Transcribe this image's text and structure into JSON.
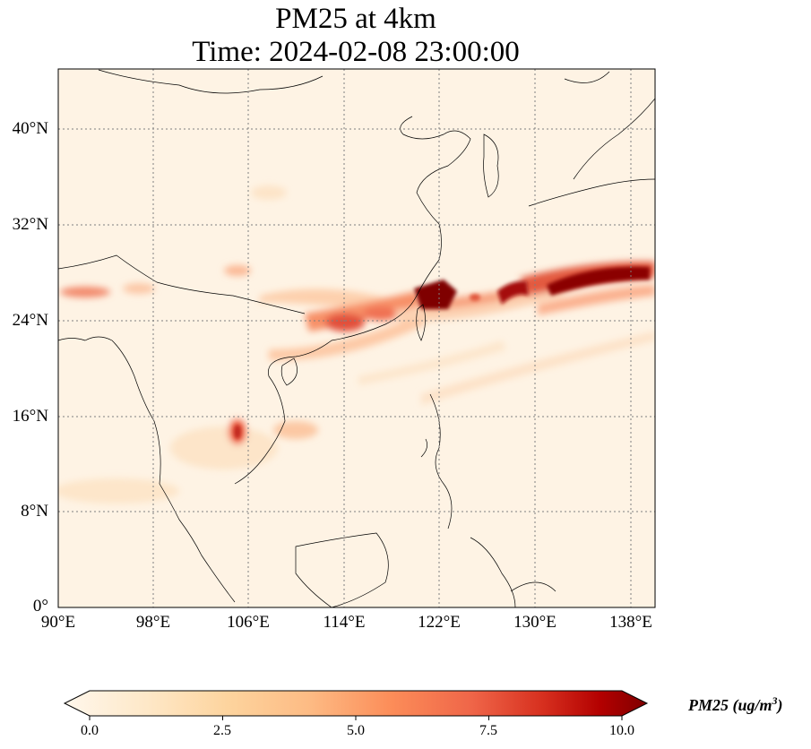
{
  "title_line1": "PM25 at 4km",
  "title_line2": "Time: 2024-02-08 23:00:00",
  "map": {
    "variable": "PM25",
    "lon_range": [
      90,
      140
    ],
    "lat_range": [
      0,
      45
    ],
    "gridlines": "dotted",
    "colormap": "OrRd",
    "lat_ticks": [
      "0°",
      "8°N",
      "16°N",
      "24°N",
      "32°N",
      "40°N"
    ],
    "lon_ticks": [
      "90°E",
      "98°E",
      "106°E",
      "114°E",
      "122°E",
      "130°E",
      "138°E"
    ]
  },
  "colorbar": {
    "ticks": [
      "0.0",
      "2.5",
      "5.0",
      "7.5",
      "10.0"
    ],
    "label_main": "PM25 (ug/m",
    "label_sup": "3",
    "label_end": ")",
    "colors": [
      "#fff7ec",
      "#fee8c8",
      "#fdd49e",
      "#fdbb84",
      "#fc8d59",
      "#ef6548",
      "#d7301f",
      "#b30000",
      "#7f0000"
    ]
  }
}
